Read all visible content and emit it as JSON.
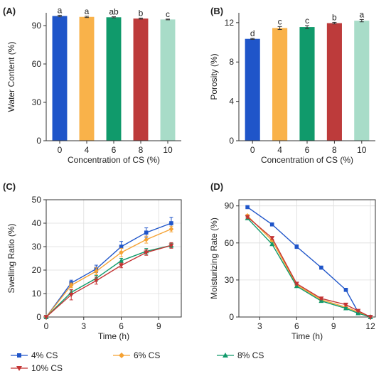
{
  "chart_data": [
    {
      "panel": "(A)",
      "type": "bar",
      "categories": [
        "0",
        "4",
        "6",
        "8",
        "10"
      ],
      "values": [
        97.5,
        96.8,
        96.5,
        95.5,
        94.8
      ],
      "errors": [
        0.6,
        0.5,
        0.4,
        0.4,
        0.3
      ],
      "letters": [
        "a",
        "a",
        "ab",
        "b",
        "c"
      ],
      "colors": [
        "#1f55c9",
        "#f9b24a",
        "#109a6b",
        "#bd3b3b",
        "#a8dcc8"
      ],
      "xlabel": "Concentration of CS (%)",
      "ylabel": "Water Content (%)",
      "ylim": [
        0,
        100
      ],
      "yticks": [
        0,
        30,
        60,
        90
      ],
      "grid": false
    },
    {
      "panel": "(B)",
      "type": "bar",
      "categories": [
        "0",
        "4",
        "6",
        "8",
        "10"
      ],
      "values": [
        10.35,
        11.45,
        11.55,
        11.95,
        12.2
      ],
      "errors": [
        0.05,
        0.15,
        0.15,
        0.08,
        0.12
      ],
      "letters": [
        "d",
        "c",
        "c",
        "b",
        "a"
      ],
      "colors": [
        "#1f55c9",
        "#f9b24a",
        "#109a6b",
        "#bd3b3b",
        "#a8dcc8"
      ],
      "xlabel": "Concentration of CS (%)",
      "ylabel": "Porosity (%)",
      "ylim": [
        0,
        13
      ],
      "yticks": [
        0,
        4,
        8,
        12
      ],
      "grid": false
    },
    {
      "panel": "(C)",
      "type": "line",
      "xlabel": "Time (h)",
      "ylabel": "Swelling Ratio (%)",
      "xlim": [
        0,
        10.8
      ],
      "ylim": [
        0,
        50
      ],
      "xticks": [
        0,
        3,
        6,
        9
      ],
      "yticks": [
        0,
        10,
        20,
        30,
        40,
        50
      ],
      "grid": true,
      "series": [
        {
          "name": "4% CS",
          "color": "#1f55c9",
          "marker": "square",
          "x": [
            0,
            2,
            4,
            6,
            8,
            10
          ],
          "y": [
            0,
            14.5,
            20.5,
            30,
            36,
            40
          ],
          "err": [
            0,
            1.2,
            1.6,
            2.2,
            2.0,
            2.5
          ]
        },
        {
          "name": "6% CS",
          "color": "#f5a233",
          "marker": "diamond",
          "x": [
            0,
            2,
            4,
            6,
            8,
            10
          ],
          "y": [
            0,
            13.5,
            19.5,
            27.5,
            33,
            37.5
          ],
          "err": [
            0,
            1.0,
            1.5,
            1.8,
            1.5,
            1.2
          ]
        },
        {
          "name": "8% CS",
          "color": "#109a6b",
          "marker": "triangle-up",
          "x": [
            0,
            2,
            4,
            6,
            8,
            10
          ],
          "y": [
            0,
            10.5,
            16.5,
            24,
            28,
            30.5
          ],
          "err": [
            0,
            1.0,
            1.2,
            1.0,
            1.2,
            1.0
          ]
        },
        {
          "name": "10% CS",
          "color": "#c33434",
          "marker": "triangle-down",
          "x": [
            0,
            2,
            4,
            6,
            8,
            10
          ],
          "y": [
            0,
            9.5,
            15.5,
            22,
            27.5,
            30.5
          ],
          "err": [
            0,
            2.2,
            1.5,
            1.0,
            1.2,
            1.2
          ]
        }
      ]
    },
    {
      "panel": "(D)",
      "type": "line",
      "xlabel": "Time (h)",
      "ylabel": "Moisturizing Rate (%)",
      "xlim": [
        1.3,
        12.4
      ],
      "ylim": [
        0,
        95
      ],
      "xticks": [
        3,
        6,
        9,
        12
      ],
      "yticks": [
        0,
        30,
        60,
        90
      ],
      "grid": true,
      "series": [
        {
          "name": "4% CS",
          "color": "#1f55c9",
          "marker": "square",
          "x": [
            2,
            4,
            6,
            8,
            10,
            11,
            12
          ],
          "y": [
            89,
            75,
            57,
            40,
            22,
            4,
            0
          ],
          "err": [
            1.0,
            1.0,
            1.5,
            1.2,
            1.0,
            0.5,
            0
          ]
        },
        {
          "name": "6% CS",
          "color": "#f5a233",
          "marker": "diamond",
          "x": [
            2,
            4,
            6,
            8,
            10,
            11,
            12
          ],
          "y": [
            82,
            62,
            26,
            14,
            8,
            4,
            0
          ],
          "err": [
            1.0,
            1.0,
            1.0,
            0.8,
            0.8,
            0.5,
            0
          ]
        },
        {
          "name": "8% CS",
          "color": "#109a6b",
          "marker": "triangle-up",
          "x": [
            2,
            4,
            6,
            8,
            10,
            11,
            12
          ],
          "y": [
            80,
            59,
            25,
            13,
            7,
            3,
            0
          ],
          "err": [
            1.0,
            1.0,
            1.0,
            0.8,
            0.8,
            0.5,
            0
          ]
        },
        {
          "name": "10% CS",
          "color": "#c33434",
          "marker": "triangle-down",
          "x": [
            2,
            4,
            6,
            8,
            10,
            11,
            12
          ],
          "y": [
            81,
            64,
            27,
            15,
            10,
            5,
            0
          ],
          "err": [
            1.0,
            1.0,
            1.0,
            0.8,
            0.8,
            0.5,
            0
          ]
        }
      ]
    }
  ],
  "legend": [
    {
      "name": "4% CS",
      "color": "#1f55c9",
      "marker": "square"
    },
    {
      "name": "6% CS",
      "color": "#f5a233",
      "marker": "diamond"
    },
    {
      "name": "8% CS",
      "color": "#109a6b",
      "marker": "triangle-up"
    },
    {
      "name": "10% CS",
      "color": "#c33434",
      "marker": "triangle-down"
    }
  ]
}
